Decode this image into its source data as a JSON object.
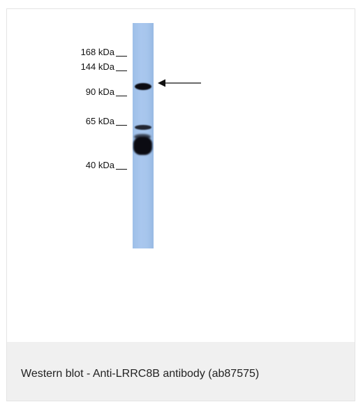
{
  "figure": {
    "markers": [
      {
        "label": "168 kDa"
      },
      {
        "label": "144 kDa"
      },
      {
        "label": "90 kDa"
      },
      {
        "label": "65 kDa"
      },
      {
        "label": "40 kDa"
      }
    ],
    "caption": "Western blot - Anti-LRRC8B antibody (ab87575)"
  }
}
